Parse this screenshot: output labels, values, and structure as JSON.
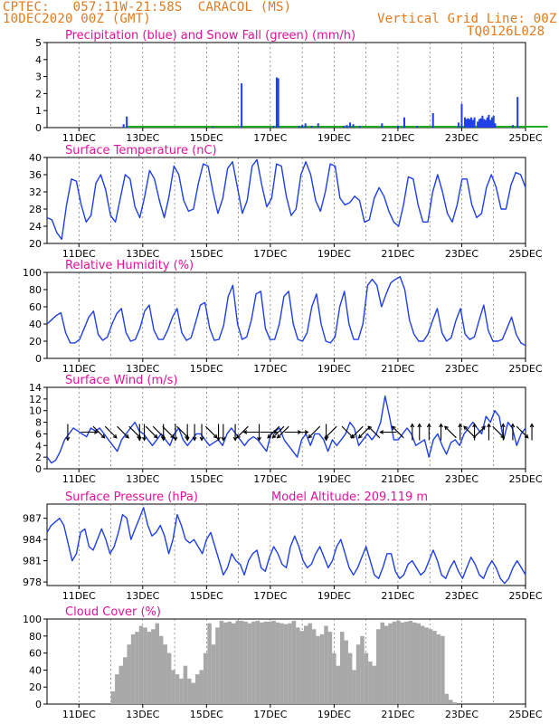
{
  "header": {
    "line1": "CPTEC:   057:11W-21:58S  CARACOL (MS)",
    "line2": "10DEC2020 00Z (GMT)",
    "grid_note": "Vertical Grid Line: 00Z",
    "code": "TQ0126L028"
  },
  "colors": {
    "header": "#e07a1f",
    "title": "#e0129a",
    "blue": "#1f3fe8",
    "green": "#22aa22",
    "cloud": "#a8a8a8",
    "arrow": "#000000"
  },
  "x_ticks": [
    "11DEC",
    "13DEC",
    "15DEC",
    "17DEC",
    "19DEC",
    "21DEC",
    "23DEC",
    "25DEC"
  ],
  "chart_data": [
    {
      "type": "bar",
      "title": "Precipitation (blue) and Snow Fall (green) (mm/h)",
      "ylim": [
        0,
        5
      ],
      "yticks": [
        "0",
        "1",
        "2",
        "3",
        "4",
        "5"
      ],
      "series": [
        {
          "name": "Precipitation",
          "points": [
            [
              2.4,
              0.2
            ],
            [
              2.5,
              0.65
            ],
            [
              5.2,
              0.05
            ],
            [
              6.1,
              2.6
            ],
            [
              7.1,
              0.1
            ],
            [
              7.2,
              2.95
            ],
            [
              7.25,
              2.9
            ],
            [
              7.9,
              0.1
            ],
            [
              8.0,
              0.15
            ],
            [
              8.1,
              0.25
            ],
            [
              8.3,
              0.1
            ],
            [
              8.5,
              0.25
            ],
            [
              9.3,
              0.1
            ],
            [
              9.4,
              0.15
            ],
            [
              9.5,
              0.3
            ],
            [
              9.6,
              0.2
            ],
            [
              9.8,
              0.1
            ],
            [
              10.5,
              0.25
            ],
            [
              11.0,
              0.1
            ],
            [
              11.2,
              0.6
            ],
            [
              11.6,
              0.1
            ],
            [
              12.1,
              0.85
            ],
            [
              12.9,
              0.3
            ],
            [
              13.0,
              1.4
            ],
            [
              13.1,
              0.6
            ],
            [
              13.15,
              0.5
            ],
            [
              13.2,
              0.55
            ],
            [
              13.25,
              0.5
            ],
            [
              13.3,
              0.6
            ],
            [
              13.35,
              0.45
            ],
            [
              13.4,
              0.6
            ],
            [
              13.5,
              0.35
            ],
            [
              13.55,
              0.5
            ],
            [
              13.6,
              0.55
            ],
            [
              13.65,
              0.7
            ],
            [
              13.7,
              0.5
            ],
            [
              13.75,
              0.45
            ],
            [
              13.8,
              0.6
            ],
            [
              13.85,
              0.75
            ],
            [
              13.9,
              0.45
            ],
            [
              13.95,
              0.6
            ],
            [
              14.0,
              0.7
            ],
            [
              14.05,
              0.25
            ],
            [
              14.6,
              0.15
            ],
            [
              14.75,
              1.8
            ]
          ]
        },
        {
          "name": "Snow Fall",
          "start": 2.5,
          "end": 15.7
        }
      ]
    },
    {
      "type": "line",
      "title": "Surface Temperature (nC)",
      "ylim": [
        20,
        40
      ],
      "yticks": [
        "20",
        "24",
        "28",
        "32",
        "36",
        "40"
      ],
      "series": [
        {
          "name": "Temperature",
          "color": "blue",
          "values": [
            26,
            25.5,
            22.5,
            21,
            29,
            35,
            34.5,
            29,
            25,
            26.5,
            34,
            36,
            32.5,
            26.5,
            25,
            30.5,
            36,
            35,
            28.5,
            26,
            31,
            37,
            35,
            30,
            26,
            31,
            38,
            36,
            30,
            27.5,
            28,
            34,
            38.5,
            38,
            32,
            27,
            30.5,
            37.5,
            39,
            33,
            27,
            30,
            38,
            39.5,
            33.5,
            28.5,
            30.5,
            38.5,
            38,
            31,
            26.5,
            28,
            36,
            39,
            36,
            30,
            27.5,
            32,
            38.5,
            38,
            30.5,
            29,
            29.5,
            31,
            30,
            25,
            25.5,
            30.5,
            33,
            31,
            27.5,
            25,
            24,
            29,
            35.5,
            35,
            29,
            25,
            25,
            32,
            36,
            32,
            27,
            25,
            29,
            35,
            35,
            29,
            26,
            27,
            33,
            36,
            33,
            28,
            28,
            33.5,
            36.5,
            36,
            33
          ]
        }
      ]
    },
    {
      "type": "line",
      "title": "Relative Humidity (%)",
      "ylim": [
        0,
        100
      ],
      "yticks": [
        "0",
        "20",
        "40",
        "60",
        "80",
        "100"
      ],
      "series": [
        {
          "name": "Humidity",
          "color": "blue",
          "values": [
            40,
            45,
            50,
            53,
            30,
            18,
            18,
            22,
            35,
            48,
            55,
            28,
            21,
            25,
            40,
            52,
            58,
            30,
            20,
            22,
            35,
            55,
            62,
            33,
            22,
            22,
            33,
            48,
            58,
            30,
            21,
            24,
            42,
            62,
            65,
            35,
            21,
            22,
            38,
            72,
            85,
            40,
            22,
            25,
            45,
            75,
            78,
            35,
            22,
            22,
            40,
            72,
            78,
            40,
            22,
            20,
            30,
            60,
            75,
            40,
            20,
            18,
            25,
            60,
            78,
            40,
            22,
            22,
            40,
            85,
            92,
            85,
            60,
            75,
            88,
            92,
            95,
            80,
            45,
            28,
            20,
            20,
            28,
            44,
            58,
            30,
            20,
            24,
            44,
            58,
            28,
            22,
            25,
            44,
            62,
            32,
            20,
            20,
            22,
            35,
            48,
            28,
            18,
            15
          ]
        }
      ]
    },
    {
      "type": "line",
      "title": "Surface Wind (m/s)",
      "ylim": [
        0,
        14
      ],
      "yticks": [
        "0",
        "2",
        "4",
        "6",
        "8",
        "10",
        "12",
        "14"
      ],
      "series": [
        {
          "name": "Wind speed",
          "color": "blue",
          "values": [
            2,
            1,
            1.5,
            3,
            5,
            6,
            7,
            6.5,
            6,
            5.5,
            7,
            6.5,
            7,
            6,
            5,
            4,
            3,
            5,
            6,
            7,
            8,
            6.5,
            6,
            5,
            4,
            5,
            6,
            5,
            4,
            6,
            7,
            5,
            4,
            5,
            6,
            6,
            5,
            4,
            4.5,
            5,
            4,
            6,
            7,
            6,
            5,
            4,
            5,
            5.5,
            5,
            4,
            3,
            6,
            6.5,
            7,
            5,
            4,
            3,
            2,
            5,
            6,
            4,
            6,
            6,
            5,
            3,
            5,
            4,
            5,
            6,
            8,
            7,
            4,
            5,
            6,
            5,
            6,
            8,
            12.5,
            9,
            5,
            5,
            6,
            7,
            6,
            4,
            4.5,
            5,
            2,
            5,
            6,
            4,
            2.5,
            4.5,
            5,
            4,
            6,
            7,
            8,
            7,
            6,
            9,
            8,
            10,
            9,
            5,
            8,
            7,
            4,
            6,
            7
          ]
        }
      ],
      "arrows": [
        [
          0.6,
          "S"
        ],
        [
          1.5,
          "E"
        ],
        [
          1.9,
          "SE"
        ],
        [
          2.4,
          "SE"
        ],
        [
          2.9,
          "SE"
        ],
        [
          3.4,
          "SE"
        ],
        [
          3.6,
          "S"
        ],
        [
          3.8,
          "S"
        ],
        [
          4.1,
          "SE"
        ],
        [
          4.4,
          "SE"
        ],
        [
          4.6,
          "S"
        ],
        [
          4.8,
          "SE"
        ],
        [
          5.1,
          "S"
        ],
        [
          5.4,
          "SE"
        ],
        [
          5.6,
          "S"
        ],
        [
          5.9,
          "S"
        ],
        [
          6.2,
          "S"
        ],
        [
          6.6,
          "SE"
        ],
        [
          6.9,
          "S"
        ],
        [
          7.1,
          "S"
        ],
        [
          7.6,
          "S"
        ],
        [
          7.9,
          "SW"
        ],
        [
          8.3,
          "W"
        ],
        [
          8.6,
          "S"
        ],
        [
          9.0,
          "E"
        ],
        [
          9.2,
          "SW"
        ],
        [
          9.4,
          "SW"
        ],
        [
          9.6,
          "SW"
        ],
        [
          10.0,
          "E"
        ],
        [
          10.3,
          "E"
        ],
        [
          10.9,
          "SW"
        ],
        [
          11.4,
          "S"
        ],
        [
          11.6,
          "SW"
        ],
        [
          12.3,
          "SE"
        ],
        [
          12.7,
          "SW"
        ],
        [
          13.0,
          "SW"
        ],
        [
          13.4,
          "NW"
        ],
        [
          14.0,
          "W"
        ],
        [
          14.4,
          "NW"
        ],
        [
          15.0,
          "N"
        ],
        [
          15.3,
          "N"
        ],
        [
          15.7,
          "N"
        ],
        [
          16.2,
          "N"
        ],
        [
          16.6,
          "NW"
        ],
        [
          17.0,
          "N"
        ],
        [
          17.4,
          "NW"
        ],
        [
          17.6,
          "N"
        ],
        [
          17.8,
          "NE"
        ],
        [
          18.2,
          "N"
        ],
        [
          18.6,
          "SE"
        ],
        [
          18.8,
          "N"
        ],
        [
          19.2,
          "N"
        ],
        [
          19.6,
          "SE"
        ],
        [
          20.0,
          "N"
        ]
      ]
    },
    {
      "type": "line",
      "title": "Surface Pressure (hPa)",
      "subtitle": "Model Altitude: 209.119 m",
      "ylim": [
        977.5,
        989
      ],
      "yticks": [
        "978",
        "981",
        "984",
        "987"
      ],
      "series": [
        {
          "name": "Pressure",
          "color": "blue",
          "values": [
            985,
            986,
            986.5,
            987,
            986,
            983.5,
            981,
            982,
            985,
            985.5,
            983,
            982.5,
            984,
            985.5,
            984,
            982,
            983,
            985,
            987.5,
            987,
            984,
            985.5,
            987,
            988.5,
            986,
            984.5,
            985,
            986,
            984.5,
            982,
            984,
            987.5,
            986,
            984,
            983.5,
            984,
            983,
            982,
            984,
            985,
            983,
            981,
            979,
            980,
            982,
            981,
            980.5,
            979,
            981,
            982,
            982.5,
            980,
            979.5,
            981.5,
            983,
            982,
            980.5,
            980,
            983,
            984.5,
            983,
            981,
            980,
            980.5,
            982,
            983,
            981.5,
            980,
            981,
            983,
            984,
            982,
            980,
            979,
            980,
            981.5,
            983,
            981,
            979,
            978.5,
            980,
            982,
            982,
            979.5,
            978.5,
            979,
            980.5,
            981,
            980,
            979,
            979.5,
            981,
            982.5,
            981,
            979,
            978.5,
            980,
            981,
            979.5,
            978.5,
            980,
            981.5,
            980.5,
            979,
            978.5,
            980,
            981,
            980,
            978.5,
            977.8,
            978.5,
            980,
            981,
            980,
            979
          ]
        }
      ]
    },
    {
      "type": "area",
      "title": "Cloud Cover (%)",
      "ylim": [
        0,
        100
      ],
      "yticks": [
        "0",
        "20",
        "40",
        "60",
        "80",
        "100"
      ],
      "series": [
        {
          "name": "Cloud Cover",
          "color": "cloud",
          "values": [
            0,
            0,
            0,
            0,
            0,
            0,
            0,
            0,
            0,
            0,
            0,
            0,
            0,
            0,
            0,
            0,
            15,
            35,
            45,
            55,
            70,
            82,
            85,
            92,
            90,
            85,
            88,
            95,
            80,
            70,
            60,
            40,
            35,
            30,
            45,
            30,
            25,
            35,
            40,
            60,
            95,
            70,
            90,
            98,
            96,
            97,
            95,
            98,
            98,
            97,
            95,
            97,
            98,
            96,
            97,
            97,
            98,
            96,
            95,
            94,
            95,
            98,
            90,
            86,
            92,
            95,
            88,
            80,
            82,
            92,
            85,
            60,
            45,
            85,
            75,
            60,
            40,
            70,
            80,
            60,
            50,
            45,
            88,
            96,
            92,
            95,
            97,
            98,
            96,
            97,
            98,
            96,
            95,
            92,
            90,
            88,
            86,
            82,
            80,
            12,
            5,
            2,
            0,
            0,
            0,
            0,
            0,
            0,
            0,
            0,
            0,
            0,
            0,
            0,
            0,
            0,
            0,
            0,
            0,
            0
          ]
        }
      ]
    }
  ]
}
